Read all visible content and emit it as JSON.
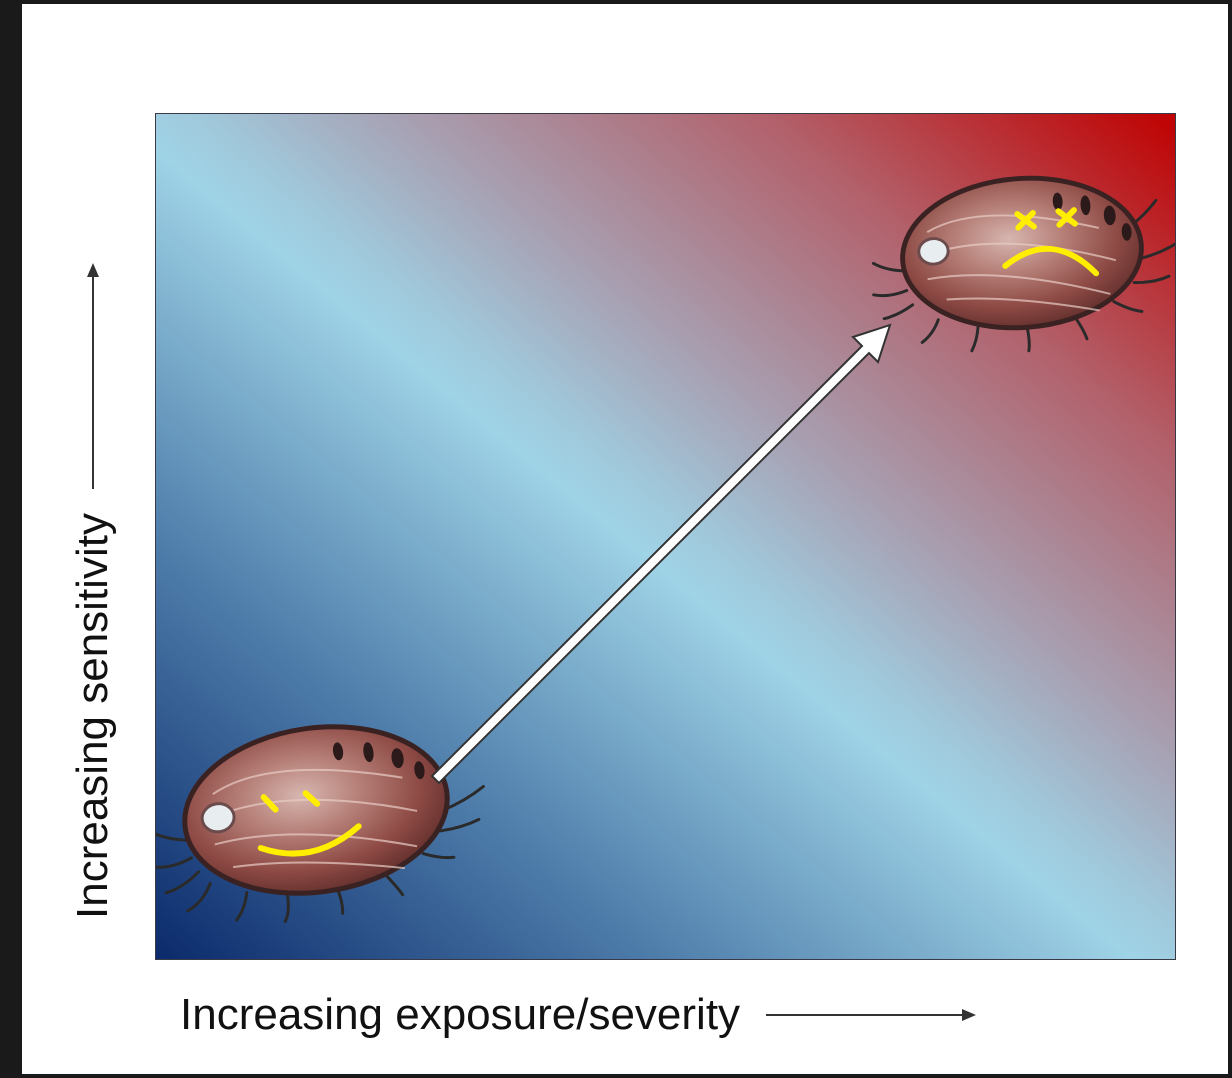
{
  "axes": {
    "x_label": "Increasing exposure/severity",
    "y_label": "Increasing sensitivity"
  },
  "gradient": {
    "low_color": "#0b2a6b",
    "mid_color": "#9fd3e6",
    "high_color": "#c00000"
  },
  "figures": {
    "low": {
      "subject": "abalone",
      "face": "smiley-face"
    },
    "high": {
      "subject": "abalone",
      "face": "sad-face-x-eyes"
    }
  },
  "face_color": "#ffee00"
}
